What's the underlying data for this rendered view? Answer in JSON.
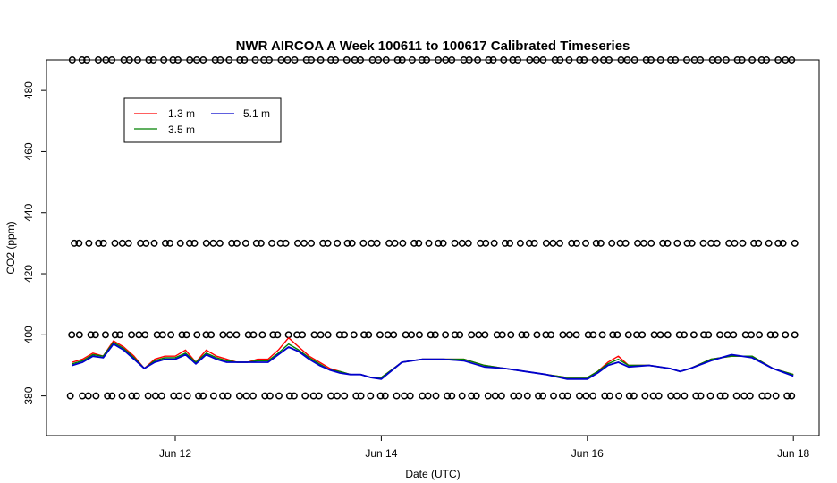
{
  "chart_data": {
    "type": "line",
    "title": "NWR AIRCOA A  Week 100611 to 100617  Calibrated Timeseries",
    "xlabel": "Date (UTC)",
    "ylabel": "CO2 (ppm)",
    "x_ticks": [
      "Jun 12",
      "Jun 14",
      "Jun 16",
      "Jun 18"
    ],
    "x_tick_days": [
      12,
      14,
      16,
      18
    ],
    "xlim": [
      10.75,
      18.25
    ],
    "ylim": [
      367,
      490
    ],
    "y_ticks": [
      380,
      400,
      420,
      440,
      460,
      480
    ],
    "grid": false,
    "legend_position": "top-left",
    "series": [
      {
        "name": "1.3 m",
        "color": "#ff0000",
        "x": [
          11.0,
          11.1,
          11.2,
          11.3,
          11.4,
          11.5,
          11.6,
          11.7,
          11.8,
          11.9,
          12.0,
          12.1,
          12.2,
          12.3,
          12.4,
          12.5,
          12.6,
          12.7,
          12.8,
          12.9,
          13.0,
          13.1,
          13.2,
          13.3,
          13.4,
          13.5,
          13.6,
          13.7,
          13.8,
          13.9,
          14.0,
          14.2,
          14.4,
          14.6,
          14.8,
          15.0,
          15.2,
          15.4,
          15.6,
          15.8,
          16.0,
          16.1,
          16.2,
          16.3,
          16.4,
          16.6,
          16.8,
          16.9,
          17.0,
          17.2,
          17.4,
          17.6,
          17.8,
          18.0
        ],
        "y": [
          391,
          392,
          394,
          393,
          398,
          396,
          393,
          389,
          392,
          393,
          393,
          395,
          391,
          395,
          393,
          392,
          391,
          391,
          392,
          392,
          395,
          399,
          396,
          393,
          391,
          389,
          388,
          387,
          387,
          386,
          386,
          391,
          392,
          392,
          392,
          390,
          389,
          388,
          387,
          386,
          386,
          388,
          391,
          393,
          390,
          390,
          389,
          388,
          389,
          392,
          393,
          393,
          389,
          387
        ]
      },
      {
        "name": "3.5 m",
        "color": "#008000",
        "x": [
          11.0,
          11.1,
          11.2,
          11.3,
          11.4,
          11.5,
          11.6,
          11.7,
          11.8,
          11.9,
          12.0,
          12.1,
          12.2,
          12.3,
          12.4,
          12.5,
          12.6,
          12.7,
          12.8,
          12.9,
          13.0,
          13.1,
          13.2,
          13.3,
          13.4,
          13.5,
          13.6,
          13.7,
          13.8,
          13.9,
          14.0,
          14.2,
          14.4,
          14.6,
          14.8,
          15.0,
          15.2,
          15.4,
          15.6,
          15.8,
          16.0,
          16.1,
          16.2,
          16.3,
          16.4,
          16.6,
          16.8,
          16.9,
          17.0,
          17.2,
          17.4,
          17.6,
          17.8,
          18.0
        ],
        "y": [
          390.5,
          391.5,
          393.5,
          393,
          397.5,
          395.5,
          392.5,
          389,
          391.5,
          392.5,
          392.5,
          394,
          391,
          394,
          392.5,
          391.5,
          391,
          391,
          391.5,
          391.5,
          394,
          397,
          395,
          392.5,
          390.5,
          388.5,
          388,
          387,
          387,
          386,
          386,
          391,
          392,
          392,
          392,
          390,
          389,
          388,
          387,
          386,
          386,
          388,
          390.5,
          392,
          390,
          390,
          389,
          388,
          389,
          392,
          393,
          393,
          389,
          387
        ]
      },
      {
        "name": "5.1 m",
        "color": "#0000cc",
        "x": [
          11.0,
          11.1,
          11.2,
          11.3,
          11.4,
          11.5,
          11.6,
          11.7,
          11.8,
          11.9,
          12.0,
          12.1,
          12.2,
          12.3,
          12.4,
          12.5,
          12.6,
          12.7,
          12.8,
          12.9,
          13.0,
          13.1,
          13.2,
          13.3,
          13.4,
          13.5,
          13.6,
          13.7,
          13.8,
          13.9,
          14.0,
          14.2,
          14.4,
          14.6,
          14.8,
          15.0,
          15.2,
          15.4,
          15.6,
          15.8,
          16.0,
          16.1,
          16.2,
          16.3,
          16.4,
          16.6,
          16.8,
          16.9,
          17.0,
          17.2,
          17.4,
          17.6,
          17.8,
          18.0
        ],
        "y": [
          390,
          391,
          393,
          392.5,
          397,
          395,
          392,
          389,
          391,
          392,
          392,
          393.5,
          390.5,
          393.5,
          392,
          391,
          391,
          391,
          391,
          391,
          393.5,
          396,
          394.5,
          392,
          390,
          388.5,
          387.5,
          387,
          387,
          386,
          385.5,
          391,
          392,
          392,
          391.5,
          389.5,
          389,
          388,
          387,
          385.5,
          385.5,
          387.5,
          390,
          391,
          389.5,
          390,
          389,
          388,
          389,
          391.5,
          393.5,
          392.5,
          389,
          386.5
        ]
      }
    ],
    "marker_rows": [
      {
        "y": 490,
        "marker": "circle-outline"
      },
      {
        "y": 430,
        "marker": "circle-outline"
      },
      {
        "y": 400,
        "marker": "circle-outline"
      },
      {
        "y": 380,
        "marker": "circle-outline"
      }
    ]
  }
}
